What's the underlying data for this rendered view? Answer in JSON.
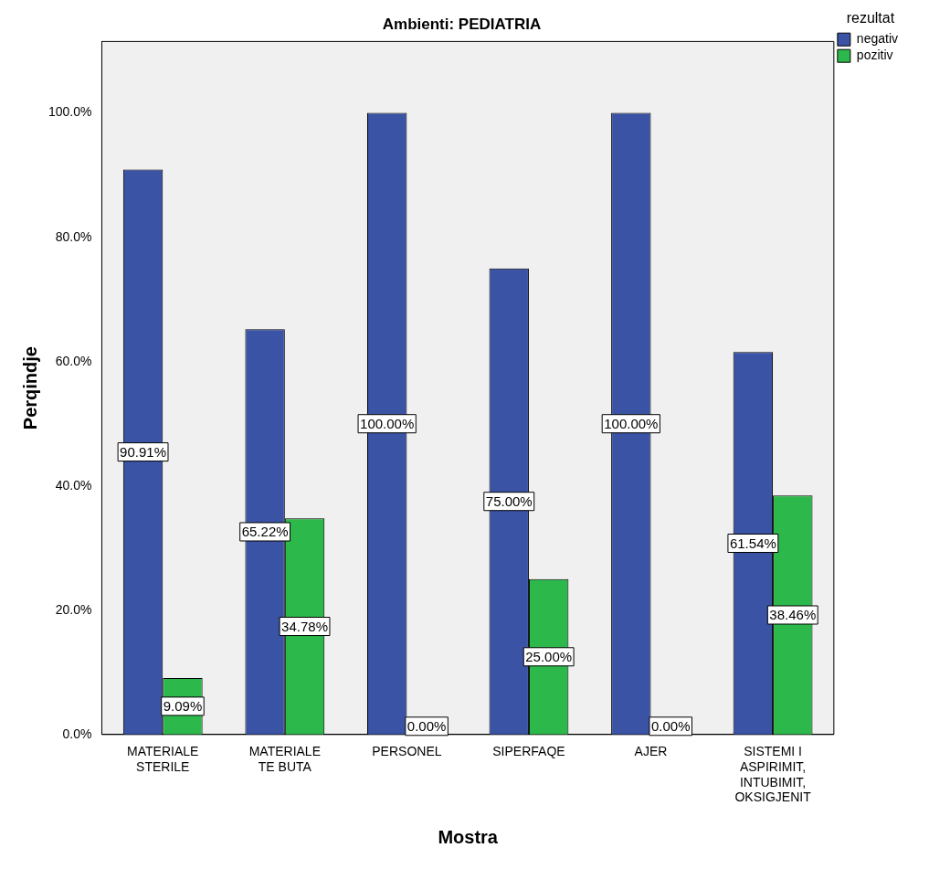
{
  "chart_data": {
    "type": "bar",
    "title": "Ambienti: PEDIATRIA",
    "xlabel": "Mostra",
    "ylabel": "Perqindje",
    "legend_title": "rezultat",
    "legend": "top right",
    "grid": false,
    "categories": [
      "MATERIALE STERILE",
      "MATERIALE TE BUTA",
      "PERSONEL",
      "SIPERFAQE",
      "AJER",
      "SISTEMI I ASPIRIMIT, INTUBIMIT, OKSIGJENIT"
    ],
    "ylim": [
      0,
      111.5
    ],
    "yticks": [
      {
        "value": 0,
        "label": "0.0%"
      },
      {
        "value": 20,
        "label": "20.0%"
      },
      {
        "value": 40,
        "label": "40.0%"
      },
      {
        "value": 60,
        "label": "60.0%"
      },
      {
        "value": 80,
        "label": "80.0%"
      },
      {
        "value": 100,
        "label": "100.0%"
      }
    ],
    "series": [
      {
        "name": "negativ",
        "color": "#3a53a4",
        "values": [
          90.91,
          65.22,
          100,
          75,
          100,
          61.54
        ],
        "value_labels": [
          "90.91%",
          "65.22%",
          "100.00%",
          "75.00%",
          "100.00%",
          "61.54%"
        ]
      },
      {
        "name": "pozitiv",
        "color": "#2db84b",
        "values": [
          9.09,
          34.78,
          0,
          25,
          0,
          38.46
        ],
        "value_labels": [
          "9.09%",
          "34.78%",
          "0.00%",
          "25.00%",
          "0.00%",
          "38.46%"
        ]
      }
    ]
  }
}
